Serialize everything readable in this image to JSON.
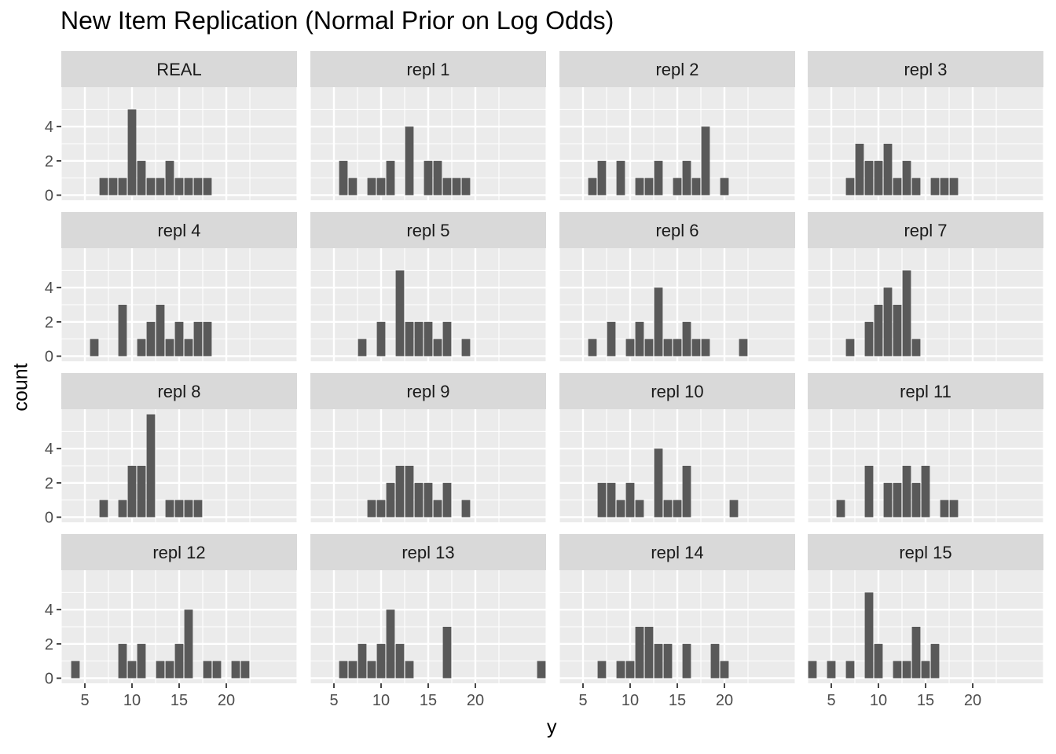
{
  "chart_data": {
    "type": "bar",
    "title": "New Item Replication (Normal Prior on Log Odds)",
    "xlabel": "y",
    "ylabel": "count",
    "xlim": [
      2.5,
      27.5
    ],
    "ylim": [
      -0.3,
      6.3
    ],
    "x_ticks": [
      5,
      10,
      15,
      20
    ],
    "y_ticks": [
      0,
      2,
      4
    ],
    "grid": true,
    "colors": {
      "bar": "#595959",
      "panel_bg": "#ebebeb",
      "strip_bg": "#d9d9d9",
      "grid": "#ffffff"
    },
    "panels": [
      {
        "label": "REAL",
        "x": [
          7,
          8,
          9,
          10,
          11,
          12,
          13,
          14,
          15,
          16,
          17,
          18
        ],
        "values": [
          1,
          1,
          1,
          5,
          2,
          1,
          1,
          2,
          1,
          1,
          1,
          1
        ]
      },
      {
        "label": "repl  1",
        "x": [
          6,
          7,
          9,
          10,
          11,
          13,
          15,
          16,
          17,
          18,
          19
        ],
        "values": [
          2,
          1,
          1,
          1,
          2,
          4,
          2,
          2,
          1,
          1,
          1
        ]
      },
      {
        "label": "repl  2",
        "x": [
          6,
          7,
          9,
          11,
          12,
          13,
          15,
          16,
          17,
          18,
          20
        ],
        "values": [
          1,
          2,
          2,
          1,
          1,
          2,
          1,
          2,
          1,
          4,
          1
        ]
      },
      {
        "label": "repl  3",
        "x": [
          7,
          8,
          9,
          10,
          11,
          12,
          13,
          14,
          16,
          17,
          18
        ],
        "values": [
          1,
          3,
          2,
          2,
          3,
          1,
          2,
          1,
          1,
          1,
          1
        ]
      },
      {
        "label": "repl  4",
        "x": [
          6,
          9,
          11,
          12,
          13,
          14,
          15,
          16,
          17,
          18
        ],
        "values": [
          1,
          3,
          1,
          2,
          3,
          1,
          2,
          1,
          2,
          2
        ]
      },
      {
        "label": "repl  5",
        "x": [
          8,
          10,
          12,
          13,
          14,
          15,
          16,
          17,
          19
        ],
        "values": [
          1,
          2,
          5,
          2,
          2,
          2,
          1,
          2,
          1
        ]
      },
      {
        "label": "repl  6",
        "x": [
          6,
          8,
          10,
          11,
          12,
          13,
          14,
          15,
          16,
          17,
          18,
          22
        ],
        "values": [
          1,
          2,
          1,
          2,
          1,
          4,
          1,
          1,
          2,
          1,
          1,
          1
        ]
      },
      {
        "label": "repl  7",
        "x": [
          7,
          9,
          10,
          11,
          12,
          13,
          14
        ],
        "values": [
          1,
          2,
          3,
          4,
          3,
          5,
          1
        ]
      },
      {
        "label": "repl  8",
        "x": [
          7,
          9,
          10,
          11,
          12,
          14,
          15,
          16,
          17
        ],
        "values": [
          1,
          1,
          3,
          3,
          6,
          1,
          1,
          1,
          1
        ]
      },
      {
        "label": "repl  9",
        "x": [
          9,
          10,
          11,
          12,
          13,
          14,
          15,
          16,
          17,
          19
        ],
        "values": [
          1,
          1,
          2,
          3,
          3,
          2,
          2,
          1,
          2,
          1
        ]
      },
      {
        "label": "repl  10",
        "x": [
          7,
          8,
          9,
          10,
          11,
          13,
          14,
          15,
          16,
          21
        ],
        "values": [
          2,
          2,
          1,
          2,
          1,
          4,
          1,
          1,
          3,
          1
        ]
      },
      {
        "label": "repl  11",
        "x": [
          6,
          9,
          11,
          12,
          13,
          14,
          15,
          17,
          18
        ],
        "values": [
          1,
          3,
          2,
          2,
          3,
          2,
          3,
          1,
          1
        ]
      },
      {
        "label": "repl  12",
        "x": [
          4,
          9,
          10,
          11,
          13,
          14,
          15,
          16,
          18,
          19,
          21,
          22
        ],
        "values": [
          1,
          2,
          1,
          2,
          1,
          1,
          2,
          4,
          1,
          1,
          1,
          1
        ]
      },
      {
        "label": "repl  13",
        "x": [
          6,
          7,
          8,
          9,
          10,
          11,
          12,
          13,
          17,
          27
        ],
        "values": [
          1,
          1,
          2,
          1,
          2,
          4,
          2,
          1,
          3,
          1
        ]
      },
      {
        "label": "repl  14",
        "x": [
          7,
          9,
          10,
          11,
          12,
          13,
          14,
          16,
          19,
          20
        ],
        "values": [
          1,
          1,
          1,
          3,
          3,
          2,
          2,
          2,
          2,
          1
        ]
      },
      {
        "label": "repl  15",
        "x": [
          3,
          5,
          7,
          9,
          10,
          12,
          13,
          14,
          15,
          16
        ],
        "values": [
          1,
          1,
          1,
          5,
          2,
          1,
          1,
          3,
          1,
          2
        ]
      }
    ]
  }
}
